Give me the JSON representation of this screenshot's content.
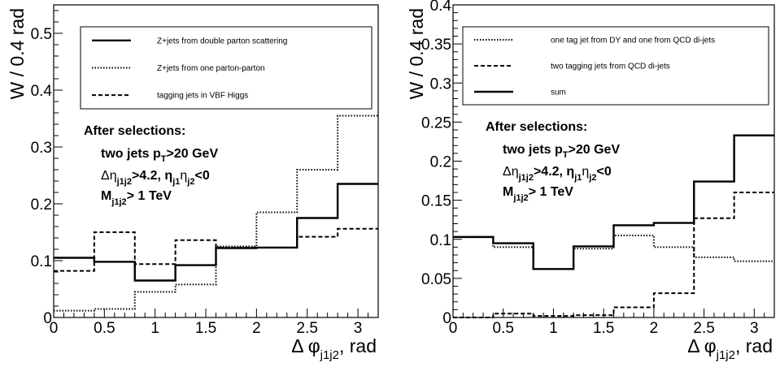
{
  "chart_data": [
    {
      "type": "line",
      "step": true,
      "xlabel": "Δ φ",
      "xlabel_sub": "j1j2",
      "xlabel_unit": ", rad",
      "ylabel": "W / 0.4 rad",
      "xlim": [
        0,
        3.2
      ],
      "ylim": [
        0,
        0.55
      ],
      "xticks": [
        "0",
        "0.5",
        "1",
        "1.5",
        "2",
        "2.5",
        "3"
      ],
      "xtick_values": [
        0,
        0.5,
        1,
        1.5,
        2,
        2.5,
        3
      ],
      "yticks": [
        "0",
        "0.1",
        "0.2",
        "0.3",
        "0.4",
        "0.5"
      ],
      "ytick_values": [
        0,
        0.1,
        0.2,
        0.3,
        0.4,
        0.5
      ],
      "grid": false,
      "legend_position": "top-right",
      "bin_edges": [
        0,
        0.4,
        0.8,
        1.2,
        1.6,
        2.0,
        2.4,
        2.8,
        3.2
      ],
      "series": [
        {
          "name": "Z+jets from double parton scattering",
          "style": "solid",
          "values": [
            0.105,
            0.098,
            0.065,
            0.092,
            0.122,
            0.123,
            0.175,
            0.235
          ]
        },
        {
          "name": "Z+jets from one parton-parton",
          "style": "dotted",
          "values": [
            0.012,
            0.015,
            0.045,
            0.058,
            0.125,
            0.185,
            0.26,
            0.355
          ]
        },
        {
          "name": "tagging jets in VBF Higgs",
          "style": "dashed",
          "values": [
            0.082,
            0.15,
            0.094,
            0.136,
            0.123,
            0.123,
            0.142,
            0.156
          ]
        }
      ],
      "annotation": {
        "title": "After selections:",
        "line1": "two jets p",
        "line1_sub": "T",
        "line1_rest": ">20 GeV",
        "line2_a": "Δη",
        "line2_a_sub": "j1j2",
        "line2_b": ">4.2, η",
        "line2_b_sub1": "j1",
        "line2_c": "η",
        "line2_c_sub": "j2",
        "line2_d": "<0",
        "line3_a": "M",
        "line3_sub": "j1j2",
        "line3_b": "> 1 TeV"
      }
    },
    {
      "type": "line",
      "step": true,
      "xlabel": "Δ φ",
      "xlabel_sub": "j1j2",
      "xlabel_unit": ", rad",
      "ylabel": "W / 0.4 rad",
      "xlim": [
        0,
        3.2
      ],
      "ylim": [
        0,
        0.4
      ],
      "xticks": [
        "0",
        "0.5",
        "1",
        "1.5",
        "2",
        "2.5",
        "3"
      ],
      "xtick_values": [
        0,
        0.5,
        1,
        1.5,
        2,
        2.5,
        3
      ],
      "yticks": [
        "0",
        "0.05",
        "0.1",
        "0.15",
        "0.2",
        "0.25",
        "0.3",
        "0.35",
        "0.4"
      ],
      "ytick_values": [
        0,
        0.05,
        0.1,
        0.15,
        0.2,
        0.25,
        0.3,
        0.35,
        0.4
      ],
      "grid": false,
      "legend_position": "top-right",
      "bin_edges": [
        0,
        0.4,
        0.8,
        1.2,
        1.6,
        2.0,
        2.4,
        2.8,
        3.2
      ],
      "series": [
        {
          "name": "one tag jet from DY and one from QCD di-jets",
          "style": "dotted",
          "values": [
            0.103,
            0.09,
            0.062,
            0.088,
            0.105,
            0.09,
            0.077,
            0.072
          ]
        },
        {
          "name": "two tagging jets from QCD di-jets",
          "style": "dashed",
          "values": [
            0.0,
            0.005,
            0.002,
            0.003,
            0.013,
            0.031,
            0.127,
            0.16
          ]
        },
        {
          "name": "sum",
          "style": "solid",
          "values": [
            0.103,
            0.095,
            0.062,
            0.091,
            0.118,
            0.121,
            0.174,
            0.233
          ]
        }
      ],
      "annotation": {
        "title": "After selections:",
        "line1": "two jets p",
        "line1_sub": "T",
        "line1_rest": ">20 GeV",
        "line2_a": "Δη",
        "line2_a_sub": "j1j2",
        "line2_b": ">4.2, η",
        "line2_b_sub1": "j1",
        "line2_c": "η",
        "line2_c_sub": "j2",
        "line2_d": "<0",
        "line3_a": "M",
        "line3_sub": "j1j2",
        "line3_b": "> 1 TeV"
      }
    }
  ]
}
